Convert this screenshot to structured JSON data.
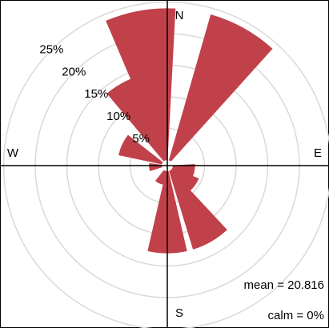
{
  "chart_data": {
    "type": "windrose",
    "directions": [
      350,
      29,
      333,
      295,
      265,
      205,
      180,
      150,
      125,
      100
    ],
    "values": [
      24,
      24,
      14,
      7,
      2,
      2.2,
      13,
      13,
      4.5,
      3.5
    ],
    "color": "#c1414a",
    "rlim": [
      0,
      25
    ],
    "rticks": [
      {
        "value": 5,
        "label": "5%"
      },
      {
        "value": 10,
        "label": "10%"
      },
      {
        "value": 15,
        "label": "15%"
      },
      {
        "value": 20,
        "label": "20%"
      },
      {
        "value": 25,
        "label": "25%"
      }
    ],
    "compass": {
      "north": "N",
      "east": "E",
      "south": "S",
      "west": "W"
    },
    "annotations": [
      "mean = 20.816",
      "calm = 0%"
    ],
    "annotation_color": "#2e9a2e"
  }
}
